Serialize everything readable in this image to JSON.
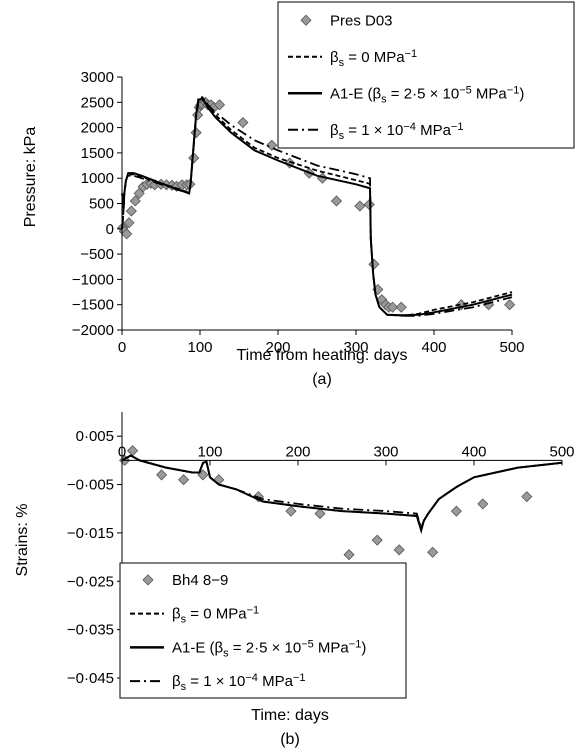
{
  "chart_data": [
    {
      "type": "line",
      "panel_label": "(a)",
      "xlabel": "Time from heating: days",
      "ylabel": "Pressure: kPa",
      "xlim": [
        0,
        500
      ],
      "ylim": [
        -2000,
        3000
      ],
      "xticks": [
        0,
        100,
        200,
        300,
        400,
        500
      ],
      "yticks": [
        3000,
        2500,
        2000,
        1500,
        1000,
        500,
        0,
        -500,
        -1000,
        -1500,
        -2000
      ],
      "xtick_labels": [
        "0",
        "100",
        "200",
        "300",
        "400",
        "500"
      ],
      "ytick_labels": [
        "3000",
        "2500",
        "2000",
        "1500",
        "1000",
        "500",
        "0",
        "−500",
        "−1000",
        "−1500",
        "−2000"
      ],
      "grid": false,
      "legend_position": "top-right",
      "series": [
        {
          "name": "Pres D03",
          "style": "markers",
          "x": [
            1,
            3,
            6,
            9,
            12,
            17,
            22,
            27,
            32,
            37,
            42,
            50,
            57,
            64,
            70,
            77,
            83,
            87,
            92,
            95,
            97,
            99,
            101,
            103,
            107,
            110,
            114,
            118,
            125,
            155,
            192,
            215,
            240,
            257,
            275,
            305,
            317,
            323,
            328,
            333,
            338,
            342,
            347,
            358,
            435,
            470,
            497
          ],
          "y": [
            20,
            -50,
            -100,
            120,
            350,
            550,
            700,
            830,
            880,
            900,
            870,
            880,
            870,
            860,
            840,
            870,
            870,
            880,
            1400,
            1900,
            2250,
            2400,
            2450,
            2470,
            2500,
            2450,
            2450,
            2400,
            2450,
            2100,
            1650,
            1300,
            1100,
            1000,
            550,
            450,
            480,
            -700,
            -1200,
            -1400,
            -1500,
            -1550,
            -1550,
            -1550,
            -1500,
            -1500,
            -1500
          ]
        },
        {
          "name": "βs = 0 MPa⁻¹",
          "style": "dashed",
          "x": [
            0,
            1,
            2,
            3,
            5,
            8,
            10,
            15,
            25,
            50,
            86,
            88,
            92,
            95,
            98,
            103,
            110,
            120,
            140,
            170,
            200,
            250,
            300,
            318,
            319,
            322,
            325,
            330,
            340,
            360,
            380,
            400,
            450,
            500
          ],
          "y": [
            0,
            150,
            400,
            700,
            950,
            1070,
            1070,
            1080,
            1030,
            900,
            720,
            900,
            1700,
            2250,
            2580,
            2600,
            2450,
            2250,
            1950,
            1600,
            1400,
            1150,
            960,
            890,
            -200,
            -900,
            -1300,
            -1550,
            -1700,
            -1720,
            -1680,
            -1600,
            -1450,
            -1250
          ]
        },
        {
          "name": "A1-E (βs = 2·5 × 10⁻⁵ MPa⁻¹)",
          "style": "solid",
          "x": [
            0,
            1,
            2,
            3,
            5,
            8,
            10,
            15,
            25,
            50,
            86,
            88,
            92,
            95,
            98,
            103,
            110,
            120,
            140,
            170,
            200,
            250,
            300,
            318,
            319,
            322,
            325,
            330,
            340,
            360,
            380,
            400,
            450,
            500
          ],
          "y": [
            700,
            600,
            400,
            700,
            950,
            1100,
            1100,
            1100,
            1050,
            900,
            700,
            900,
            1700,
            2250,
            2550,
            2580,
            2400,
            2200,
            1900,
            1550,
            1350,
            1050,
            880,
            800,
            -200,
            -900,
            -1300,
            -1550,
            -1700,
            -1710,
            -1700,
            -1650,
            -1500,
            -1300
          ]
        },
        {
          "name": "βs = 1 × 10⁻⁴ MPa⁻¹",
          "style": "dashdot",
          "x": [
            0,
            1,
            2,
            3,
            5,
            8,
            10,
            15,
            25,
            50,
            86,
            88,
            92,
            95,
            98,
            103,
            110,
            120,
            140,
            170,
            200,
            250,
            300,
            318,
            319,
            322,
            325,
            330,
            340,
            360,
            380,
            400,
            450,
            500
          ],
          "y": [
            0,
            150,
            400,
            700,
            950,
            1050,
            1050,
            1050,
            1000,
            880,
            700,
            880,
            1650,
            2200,
            2500,
            2550,
            2450,
            2300,
            2050,
            1750,
            1550,
            1250,
            1080,
            1000,
            -200,
            -900,
            -1300,
            -1550,
            -1700,
            -1720,
            -1720,
            -1680,
            -1550,
            -1350
          ]
        }
      ]
    },
    {
      "type": "line",
      "panel_label": "(b)",
      "xlabel": "Time: days",
      "ylabel": "Strains: %",
      "xlim": [
        0,
        500
      ],
      "ylim": [
        -0.045,
        0.01
      ],
      "xticks": [
        0,
        100,
        200,
        300,
        400,
        500
      ],
      "yticks": [
        0.005,
        -0.005,
        -0.015,
        -0.025,
        -0.035,
        -0.045
      ],
      "xtick_labels": [
        "0",
        "100",
        "200",
        "300",
        "400",
        "500"
      ],
      "ytick_labels": [
        "0·005",
        "−0·005",
        "−0·015",
        "−0·025",
        "−0·035",
        "−0·045"
      ],
      "grid": false,
      "legend_position": "bottom-left",
      "series": [
        {
          "name": "Bh4 8−9",
          "style": "markers",
          "x": [
            3,
            12,
            45,
            70,
            92,
            110,
            155,
            192,
            225,
            258,
            290,
            315,
            353,
            380,
            410,
            460
          ],
          "y": [
            0.0,
            0.002,
            -0.003,
            -0.004,
            -0.003,
            -0.004,
            -0.0075,
            -0.0105,
            -0.011,
            -0.0195,
            -0.0165,
            -0.0185,
            -0.019,
            -0.0105,
            -0.009,
            -0.0075
          ]
        },
        {
          "name": "βs = 0 MPa⁻¹",
          "style": "dashed",
          "x": [
            0,
            10,
            20,
            50,
            80,
            88,
            92,
            96,
            100,
            110,
            130,
            160,
            200,
            250,
            300,
            335,
            340,
            343,
            348,
            360,
            380,
            400,
            450,
            500
          ],
          "y": [
            0.0,
            0.001,
            0.0,
            -0.0015,
            -0.0025,
            -0.0025,
            -0.0005,
            -0.0003,
            -0.0035,
            -0.005,
            -0.006,
            -0.0085,
            -0.0095,
            -0.0105,
            -0.011,
            -0.0115,
            -0.014,
            -0.0125,
            -0.011,
            -0.008,
            -0.0055,
            -0.0035,
            -0.0015,
            -0.0005
          ]
        },
        {
          "name": "A1-E (βs = 2·5 × 10⁻⁵ MPa⁻¹)",
          "style": "solid",
          "x": [
            0,
            10,
            20,
            50,
            80,
            88,
            92,
            96,
            100,
            110,
            130,
            160,
            200,
            250,
            300,
            335,
            340,
            343,
            348,
            360,
            380,
            400,
            450,
            500
          ],
          "y": [
            0.0,
            0.001,
            0.0,
            -0.0015,
            -0.0025,
            -0.0025,
            -0.0005,
            -0.0003,
            -0.0035,
            -0.005,
            -0.006,
            -0.0085,
            -0.0095,
            -0.0105,
            -0.011,
            -0.0115,
            -0.0145,
            -0.0125,
            -0.011,
            -0.008,
            -0.0055,
            -0.0035,
            -0.0015,
            -0.0005
          ]
        },
        {
          "name": "βs = 1 × 10⁻⁴ MPa⁻¹",
          "style": "dashdot",
          "x": [
            0,
            10,
            20,
            50,
            80,
            88,
            92,
            96,
            100,
            110,
            130,
            160,
            200,
            250,
            300,
            335,
            340,
            343,
            348,
            360,
            380,
            400,
            450,
            500
          ],
          "y": [
            0.0,
            0.001,
            0.0,
            -0.0015,
            -0.0025,
            -0.0025,
            -0.0005,
            -0.0003,
            -0.0035,
            -0.005,
            -0.006,
            -0.008,
            -0.009,
            -0.01,
            -0.0105,
            -0.011,
            -0.014,
            -0.0125,
            -0.011,
            -0.008,
            -0.0055,
            -0.0035,
            -0.0015,
            -0.0005
          ]
        }
      ]
    }
  ],
  "legend_a": {
    "items": [
      {
        "kind": "marker",
        "label": "Pres D03"
      },
      {
        "kind": "dashed",
        "prefix": "β",
        "sub": "s",
        "mid": " = 0 MPa",
        "sup": "−1",
        "tail": ""
      },
      {
        "kind": "solid",
        "prefix": "A1-E (β",
        "sub": "s",
        "mid": " = 2·5 × 10",
        "sup": "−5",
        "mid2": " MPa",
        "sup2": "−1",
        "tail": ")"
      },
      {
        "kind": "dashdot",
        "prefix": "β",
        "sub": "s",
        "mid": " = 1 × 10",
        "sup": "−4",
        "mid2": " MPa",
        "sup2": "−1",
        "tail": ""
      }
    ]
  },
  "legend_b": {
    "items": [
      {
        "kind": "marker",
        "label": "Bh4 8−9"
      },
      {
        "kind": "dashed",
        "prefix": "β",
        "sub": "s",
        "mid": " = 0 MPa",
        "sup": "−1",
        "tail": ""
      },
      {
        "kind": "solid",
        "prefix": "A1-E (β",
        "sub": "s",
        "mid": " = 2·5 × 10",
        "sup": "−5",
        "mid2": " MPa",
        "sup2": "−1",
        "tail": ")"
      },
      {
        "kind": "dashdot",
        "prefix": "β",
        "sub": "s",
        "mid": " = 1 × 10",
        "sup": "−4",
        "mid2": " MPa",
        "sup2": "−1",
        "tail": ""
      }
    ]
  },
  "colors": {
    "marker_fill": "#9a9a9a",
    "marker_stroke": "#555555",
    "line": "#000000"
  }
}
